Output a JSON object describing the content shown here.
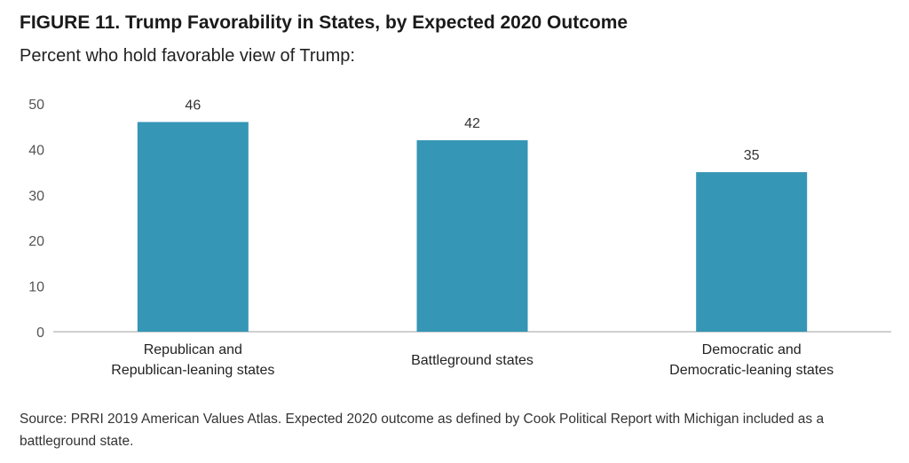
{
  "title": "FIGURE 11. Trump Favorability in States, by Expected 2020 Outcome",
  "subtitle": "Percent who hold favorable view of Trump:",
  "source": "Source: PRRI 2019 American Values Atlas. Expected 2020 outcome as defined by Cook Political Report with Michigan included as a battleground state.",
  "colors": {
    "bar": "#3596b5",
    "axis": "#bfbfbf",
    "tick_text": "#555555"
  },
  "chart_data": {
    "type": "bar",
    "title": "FIGURE 11. Trump Favorability in States, by Expected 2020 Outcome",
    "subtitle": "Percent who hold favorable view of Trump:",
    "categories": [
      [
        "Republican and",
        "Republican-leaning states"
      ],
      [
        "Battleground states"
      ],
      [
        "Democratic and",
        "Democratic-leaning states"
      ]
    ],
    "values": [
      46,
      42,
      35
    ],
    "ylim": [
      0,
      50
    ],
    "yticks": [
      0,
      10,
      20,
      30,
      40,
      50
    ],
    "grid": false,
    "legend": "none"
  }
}
